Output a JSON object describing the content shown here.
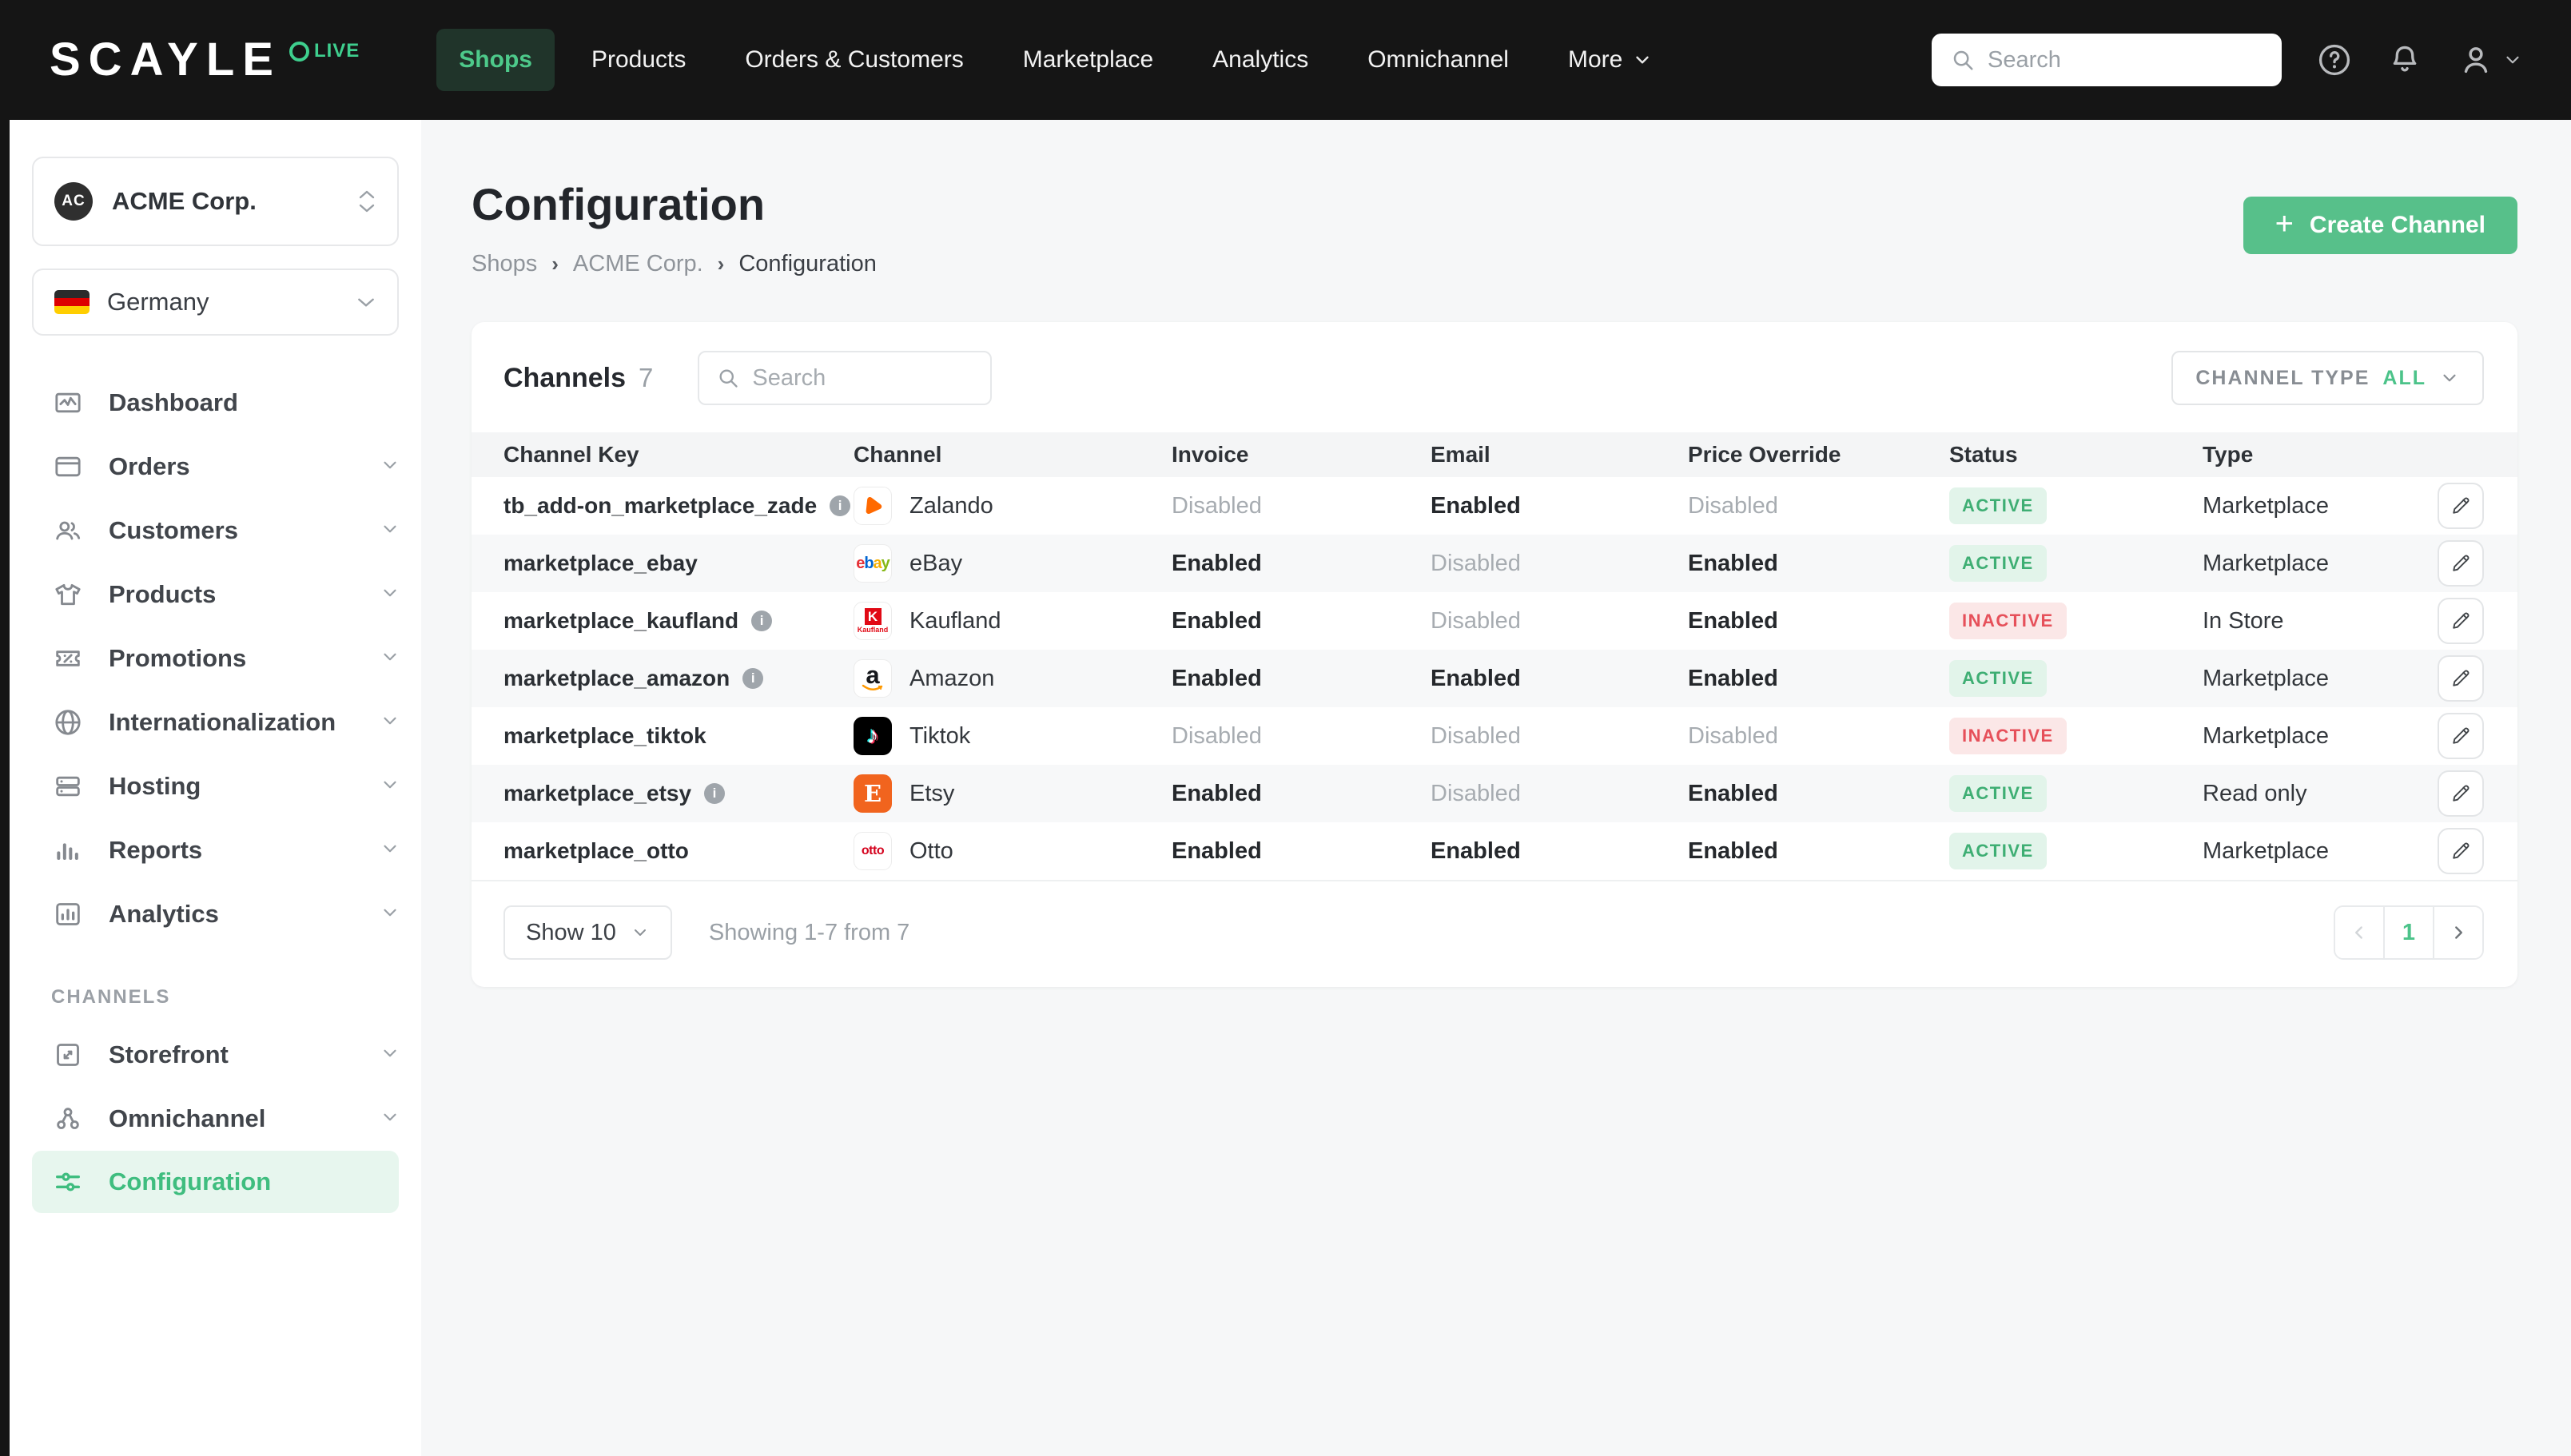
{
  "topbar": {
    "logo": "SCAYLE",
    "logo_badge": "LIVE",
    "nav": [
      {
        "label": "Shops",
        "active": true
      },
      {
        "label": "Products",
        "active": false
      },
      {
        "label": "Orders & Customers",
        "active": false
      },
      {
        "label": "Marketplace",
        "active": false
      },
      {
        "label": "Analytics",
        "active": false
      },
      {
        "label": "Omnichannel",
        "active": false
      },
      {
        "label": "More",
        "active": false
      }
    ],
    "search_placeholder": "Search"
  },
  "sidebar": {
    "shop_selector": {
      "initials": "AC",
      "name": "ACME Corp."
    },
    "country_selector": {
      "name": "Germany"
    },
    "items": [
      {
        "label": "Dashboard"
      },
      {
        "label": "Orders"
      },
      {
        "label": "Customers"
      },
      {
        "label": "Products"
      },
      {
        "label": "Promotions"
      },
      {
        "label": "Internationalization"
      },
      {
        "label": "Hosting"
      },
      {
        "label": "Reports"
      },
      {
        "label": "Analytics"
      }
    ],
    "section_label": "CHANNELS",
    "channel_items": [
      {
        "label": "Storefront"
      },
      {
        "label": "Omnichannel"
      },
      {
        "label": "Configuration",
        "active": true
      }
    ]
  },
  "page": {
    "title": "Configuration",
    "breadcrumb": [
      "Shops",
      "ACME Corp.",
      "Configuration"
    ],
    "create_button": "Create Channel"
  },
  "panel": {
    "title": "Channels",
    "count": "7",
    "search_placeholder": "Search",
    "filter_label": "CHANNEL TYPE",
    "filter_value": "ALL"
  },
  "table": {
    "columns": [
      "Channel Key",
      "Channel",
      "Invoice",
      "Email",
      "Price Override",
      "Status",
      "Type"
    ],
    "rows": [
      {
        "key": "tb_add-on_marketplace_zade",
        "info": true,
        "channel": "Zalando",
        "logo": "zalando",
        "invoice": "Disabled",
        "email": "Enabled",
        "price_override": "Disabled",
        "status": "ACTIVE",
        "type": "Marketplace"
      },
      {
        "key": "marketplace_ebay",
        "info": false,
        "channel": "eBay",
        "logo": "ebay",
        "invoice": "Enabled",
        "email": "Disabled",
        "price_override": "Enabled",
        "status": "ACTIVE",
        "type": "Marketplace"
      },
      {
        "key": "marketplace_kaufland",
        "info": true,
        "channel": "Kaufland",
        "logo": "kaufland",
        "invoice": "Enabled",
        "email": "Disabled",
        "price_override": "Enabled",
        "status": "INACTIVE",
        "type": "In Store"
      },
      {
        "key": "marketplace_amazon",
        "info": true,
        "channel": "Amazon",
        "logo": "amazon",
        "invoice": "Enabled",
        "email": "Enabled",
        "price_override": "Enabled",
        "status": "ACTIVE",
        "type": "Marketplace"
      },
      {
        "key": "marketplace_tiktok",
        "info": false,
        "channel": "Tiktok",
        "logo": "tiktok",
        "invoice": "Disabled",
        "email": "Disabled",
        "price_override": "Disabled",
        "status": "INACTIVE",
        "type": "Marketplace"
      },
      {
        "key": "marketplace_etsy",
        "info": true,
        "channel": "Etsy",
        "logo": "etsy",
        "invoice": "Enabled",
        "email": "Disabled",
        "price_override": "Enabled",
        "status": "ACTIVE",
        "type": "Read only"
      },
      {
        "key": "marketplace_otto",
        "info": false,
        "channel": "Otto",
        "logo": "otto",
        "invoice": "Enabled",
        "email": "Enabled",
        "price_override": "Enabled",
        "status": "ACTIVE",
        "type": "Marketplace"
      }
    ]
  },
  "footer": {
    "show_label": "Show 10",
    "summary": "Showing 1-7 from 7",
    "page": "1"
  },
  "colors": {
    "accent_green": "#4cc38a",
    "create_button_green": "#57c08a",
    "active_badge_text": "#3eae73",
    "active_badge_bg": "#e2f4ea",
    "inactive_badge_text": "#e6505a",
    "inactive_badge_bg": "#fbe7e7",
    "topbar_bg": "#151515"
  }
}
